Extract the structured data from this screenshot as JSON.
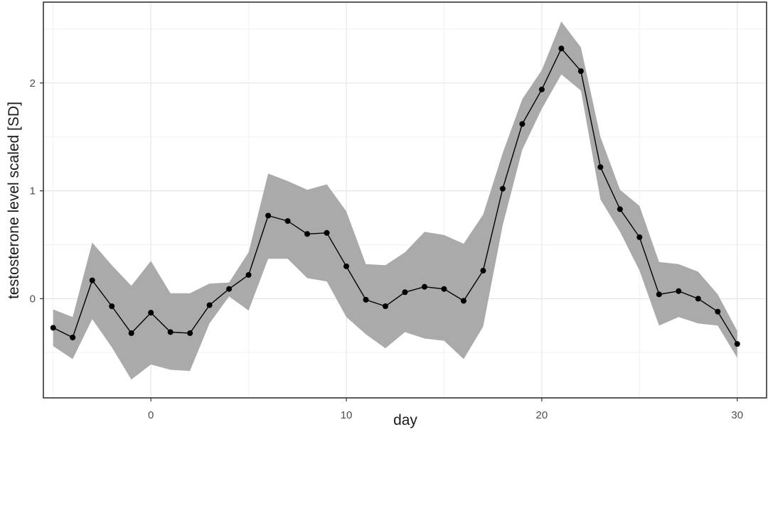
{
  "chart_data": {
    "type": "line",
    "xlabel": "day",
    "ylabel": "testosterone level scaled [SD]",
    "xlim": [
      -5.5,
      31.5
    ],
    "ylim": [
      -0.92,
      2.75
    ],
    "x_ticks": [
      0,
      10,
      20,
      30
    ],
    "x_tick_labels": [
      "0",
      "10",
      "20",
      "30"
    ],
    "y_ticks": [
      0,
      1,
      2
    ],
    "y_tick_labels": [
      "0",
      "1",
      "2"
    ],
    "grid": true,
    "legend": "none",
    "series": [
      {
        "style": "line+points",
        "color": "#000000",
        "ribbon_color": "#aaaaaa",
        "x": [
          -5,
          -4,
          -3,
          -2,
          -1,
          0,
          1,
          2,
          3,
          4,
          5,
          6,
          7,
          8,
          9,
          10,
          11,
          12,
          13,
          14,
          15,
          16,
          17,
          18,
          19,
          20,
          21,
          22,
          23,
          24,
          25,
          26,
          27,
          28,
          29,
          30
        ],
        "y": [
          -0.27,
          -0.36,
          0.17,
          -0.07,
          -0.32,
          -0.13,
          -0.31,
          -0.32,
          -0.06,
          0.09,
          0.22,
          0.77,
          0.72,
          0.6,
          0.61,
          0.3,
          -0.01,
          -0.07,
          0.06,
          0.11,
          0.09,
          -0.02,
          0.26,
          1.02,
          1.62,
          1.94,
          2.32,
          2.11,
          1.22,
          0.83,
          0.57,
          0.04,
          0.07,
          0.0,
          -0.12,
          -0.42
        ],
        "lower": [
          -0.44,
          -0.56,
          -0.19,
          -0.45,
          -0.75,
          -0.61,
          -0.66,
          -0.67,
          -0.23,
          0.02,
          -0.11,
          0.37,
          0.37,
          0.19,
          0.16,
          -0.17,
          -0.33,
          -0.46,
          -0.31,
          -0.37,
          -0.39,
          -0.56,
          -0.26,
          0.68,
          1.38,
          1.76,
          2.08,
          1.93,
          0.92,
          0.62,
          0.26,
          -0.25,
          -0.17,
          -0.23,
          -0.25,
          -0.55
        ],
        "upper": [
          -0.1,
          -0.17,
          0.52,
          0.31,
          0.12,
          0.35,
          0.05,
          0.05,
          0.14,
          0.15,
          0.43,
          1.16,
          1.09,
          1.01,
          1.06,
          0.81,
          0.32,
          0.31,
          0.43,
          0.62,
          0.59,
          0.51,
          0.78,
          1.35,
          1.85,
          2.12,
          2.57,
          2.33,
          1.5,
          1.01,
          0.86,
          0.34,
          0.32,
          0.25,
          0.04,
          -0.3
        ]
      }
    ]
  }
}
